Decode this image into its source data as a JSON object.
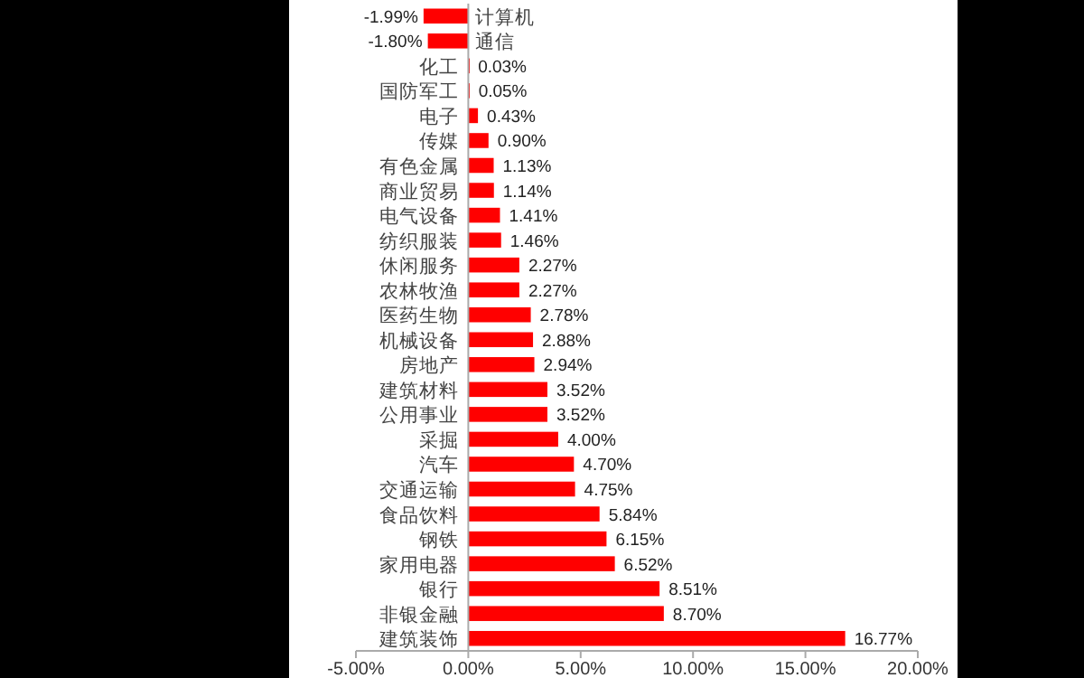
{
  "chart_data": {
    "type": "bar",
    "orientation": "horizontal",
    "categories": [
      "计算机",
      "通信",
      "化工",
      "国防军工",
      "电子",
      "传媒",
      "有色金属",
      "商业贸易",
      "电气设备",
      "纺织服装",
      "休闲服务",
      "农林牧渔",
      "医药生物",
      "机械设备",
      "房地产",
      "建筑材料",
      "公用事业",
      "采掘",
      "汽车",
      "交通运输",
      "食品饮料",
      "钢铁",
      "家用电器",
      "银行",
      "非银金融",
      "建筑装饰"
    ],
    "values": [
      -1.99,
      -1.8,
      0.03,
      0.05,
      0.43,
      0.9,
      1.13,
      1.14,
      1.41,
      1.46,
      2.27,
      2.27,
      2.78,
      2.88,
      2.94,
      3.52,
      3.52,
      4.0,
      4.7,
      4.75,
      5.84,
      6.15,
      6.52,
      8.51,
      8.7,
      16.77
    ],
    "value_labels": [
      "-1.99%",
      "-1.80%",
      "0.03%",
      "0.05%",
      "0.43%",
      "0.90%",
      "1.13%",
      "1.14%",
      "1.41%",
      "1.46%",
      "2.27%",
      "2.27%",
      "2.78%",
      "2.88%",
      "2.94%",
      "3.52%",
      "3.52%",
      "4.00%",
      "4.70%",
      "4.75%",
      "5.84%",
      "6.15%",
      "6.52%",
      "8.51%",
      "8.70%",
      "16.77%"
    ],
    "color": "#ff0000",
    "xlim": [
      -5,
      20
    ],
    "xticks": [
      {
        "value": -5,
        "label": "-5.00%"
      },
      {
        "value": 0,
        "label": "0.00%"
      },
      {
        "value": 5,
        "label": "5.00%"
      },
      {
        "value": 10,
        "label": "10.00%"
      },
      {
        "value": 15,
        "label": "15.00%"
      },
      {
        "value": 20,
        "label": "20.00%"
      }
    ]
  }
}
